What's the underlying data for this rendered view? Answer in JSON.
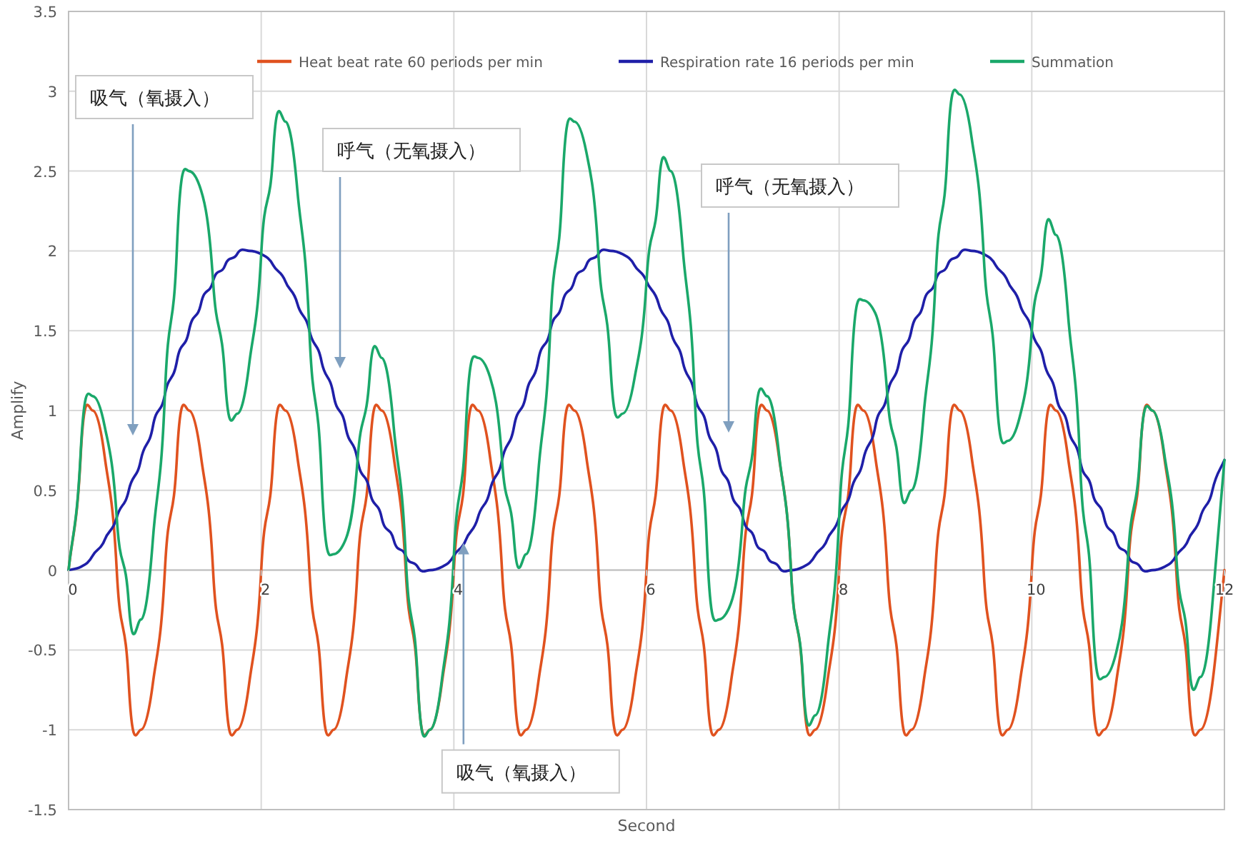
{
  "chart_data": {
    "type": "line",
    "xlabel": "Second",
    "ylabel": "Amplify",
    "x": [
      0,
      0.125,
      0.25,
      0.375,
      0.5,
      0.625,
      0.75,
      0.875,
      1,
      1.125,
      1.25,
      1.375,
      1.5,
      1.625,
      1.75,
      1.875,
      2,
      2.125,
      2.25,
      2.375,
      2.5,
      2.625,
      2.75,
      2.875,
      3,
      3.125,
      3.25,
      3.375,
      3.5,
      3.625,
      3.75,
      3.875,
      4,
      4.125,
      4.25,
      4.375,
      4.5,
      4.625,
      4.75,
      4.875,
      5,
      5.125,
      5.25,
      5.375,
      5.5,
      5.625,
      5.75,
      5.875,
      6,
      6.125,
      6.25,
      6.375,
      6.5,
      6.625,
      6.75,
      6.875,
      7,
      7.125,
      7.25,
      7.375,
      7.5,
      7.625,
      7.75,
      7.875,
      8,
      8.125,
      8.25,
      8.375,
      8.5,
      8.625,
      8.75,
      8.875,
      9,
      9.125,
      9.25,
      9.375,
      9.5,
      9.625,
      9.75,
      9.875,
      10,
      10.125,
      10.25,
      10.375,
      10.5,
      10.625,
      10.75,
      10.875,
      11,
      11.125,
      11.25,
      11.375,
      11.5,
      11.625,
      11.75,
      11.875,
      12
    ],
    "series": [
      {
        "name": "Heat beat rate 60 periods per min",
        "color": "#e0521f",
        "values": [
          0,
          0.71,
          1,
          0.71,
          0,
          -0.71,
          -1,
          -0.71,
          0,
          0.71,
          1,
          0.71,
          0,
          -0.71,
          -1,
          -0.71,
          0,
          0.71,
          1,
          0.71,
          0,
          -0.71,
          -1,
          -0.71,
          0,
          0.71,
          1,
          0.71,
          0,
          -0.71,
          -1,
          -0.71,
          0,
          0.71,
          1,
          0.71,
          0,
          -0.71,
          -1,
          -0.71,
          0,
          0.71,
          1,
          0.71,
          0,
          -0.71,
          -1,
          -0.71,
          0,
          0.71,
          1,
          0.71,
          0,
          -0.71,
          -1,
          -0.71,
          0,
          0.71,
          1,
          0.71,
          0,
          -0.71,
          -1,
          -0.71,
          0,
          0.71,
          1,
          0.71,
          0,
          -0.71,
          -1,
          -0.71,
          0,
          0.71,
          1,
          0.71,
          0,
          -0.71,
          -1,
          -0.71,
          0,
          0.71,
          1,
          0.71,
          0,
          -0.71,
          -1,
          -0.71,
          0,
          0.71,
          1,
          0.71,
          0,
          -0.71,
          -1,
          -0.71,
          0
        ]
      },
      {
        "name": "Respiration rate 16 periods per min",
        "color": "#1f1fa8",
        "values": [
          0,
          0.02,
          0.09,
          0.19,
          0.33,
          0.5,
          0.69,
          0.9,
          1.1,
          1.31,
          1.5,
          1.67,
          1.81,
          1.91,
          1.98,
          2,
          1.98,
          1.91,
          1.81,
          1.67,
          1.5,
          1.31,
          1.1,
          0.9,
          0.69,
          0.5,
          0.33,
          0.19,
          0.09,
          0.02,
          0,
          0.02,
          0.09,
          0.19,
          0.33,
          0.5,
          0.69,
          0.9,
          1.1,
          1.31,
          1.5,
          1.67,
          1.81,
          1.91,
          1.98,
          2,
          1.98,
          1.91,
          1.81,
          1.67,
          1.5,
          1.31,
          1.1,
          0.9,
          0.69,
          0.5,
          0.33,
          0.19,
          0.09,
          0.02,
          0,
          0.02,
          0.09,
          0.19,
          0.33,
          0.5,
          0.69,
          0.9,
          1.1,
          1.31,
          1.5,
          1.67,
          1.81,
          1.91,
          1.98,
          2,
          1.98,
          1.91,
          1.81,
          1.67,
          1.5,
          1.31,
          1.1,
          0.9,
          0.69,
          0.5,
          0.33,
          0.19,
          0.09,
          0.02,
          0,
          0.02,
          0.09,
          0.19,
          0.33,
          0.5,
          0.69
        ]
      },
      {
        "name": "Summation",
        "color": "#1aa86a",
        "values": [
          0,
          0.73,
          1.09,
          0.9,
          0.33,
          -0.21,
          -0.31,
          0.19,
          1.1,
          2.02,
          2.5,
          2.38,
          1.81,
          1.2,
          0.98,
          1.29,
          1.98,
          2.62,
          2.81,
          2.38,
          1.5,
          0.6,
          0.1,
          0.19,
          0.69,
          1.21,
          1.33,
          0.9,
          0.09,
          -0.69,
          -1,
          -0.69,
          0.09,
          0.9,
          1.33,
          1.21,
          0.69,
          0.19,
          0.1,
          0.6,
          1.5,
          2.38,
          2.81,
          2.62,
          1.98,
          1.29,
          0.98,
          1.2,
          1.81,
          2.38,
          2.5,
          2.02,
          1.1,
          0.19,
          -0.31,
          -0.21,
          0.33,
          0.9,
          1.09,
          0.73,
          0,
          -0.69,
          -0.91,
          -0.52,
          0.33,
          1.21,
          1.69,
          1.61,
          1.1,
          0.6,
          0.5,
          0.96,
          1.81,
          2.62,
          2.98,
          2.71,
          1.98,
          1.2,
          0.81,
          0.96,
          1.5,
          2.02,
          2.1,
          1.61,
          0.69,
          -0.21,
          -0.67,
          -0.52,
          0.09,
          0.73,
          1,
          0.73,
          0.09,
          -0.52,
          -0.67,
          -0.21,
          0.69
        ]
      }
    ],
    "xlim": [
      0,
      12
    ],
    "xticks": [
      0,
      2,
      4,
      6,
      8,
      10,
      12
    ],
    "ylim": [
      -1.5,
      3.5
    ],
    "yticks": [
      -1.5,
      -1,
      -0.5,
      0,
      0.5,
      1,
      1.5,
      2,
      2.5,
      3,
      3.5
    ],
    "grid": true,
    "legend": "top",
    "marker": "none",
    "line_style": "solid",
    "annotations": [
      "吸气（氧摄入）",
      "呼气（无氧摄入）",
      "呼气（无氧摄入）",
      {
        "text": "吸气（氧摄入）",
        "x": 4.1,
        "y": 0.17
      }
    ]
  }
}
